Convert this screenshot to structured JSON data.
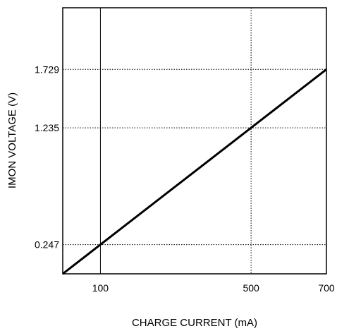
{
  "chart_data": {
    "type": "line",
    "xlabel": "CHARGE CURRENT (mA)",
    "ylabel": "IMON VOLTAGE (V)",
    "xlim": [
      0,
      700
    ],
    "ylim": [
      0,
      2.25
    ],
    "x_ticks": [
      {
        "value": 100,
        "label": "100"
      },
      {
        "value": 500,
        "label": "500"
      },
      {
        "value": 700,
        "label": "700"
      }
    ],
    "y_ticks": [
      {
        "value": 0.247,
        "label": "0.247"
      },
      {
        "value": 1.235,
        "label": "1.235"
      },
      {
        "value": 1.729,
        "label": "1.729"
      }
    ],
    "grid": true,
    "series": [
      {
        "x": [
          0,
          100,
          500,
          700
        ],
        "y": [
          0,
          0.247,
          1.235,
          1.729
        ]
      }
    ],
    "line_color": "#000000"
  }
}
